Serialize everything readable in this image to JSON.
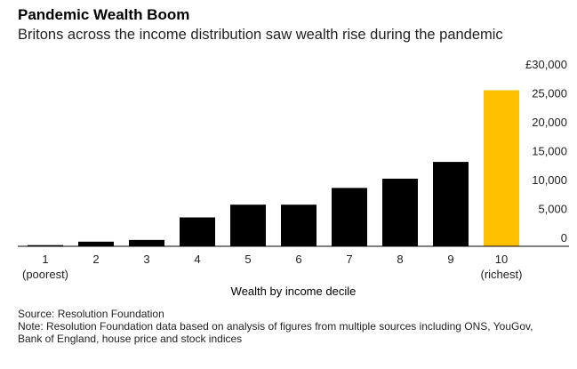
{
  "header": {
    "title": "Pandemic Wealth Boom",
    "subtitle": "Britons across the income distribution saw wealth rise during the pandemic"
  },
  "footer": {
    "source": "Source: Resolution Foundation",
    "note": "Note: Resolution Foundation data based on analysis of figures from multiple sources including ONS, YouGov, Bank of England, house price and stock indices"
  },
  "colors": {
    "default_bar": "#000000",
    "highlight_bar": "#ffc000",
    "axis": "#000000"
  },
  "chart_data": {
    "type": "bar",
    "title": "Pandemic Wealth Boom",
    "subtitle": "Britons across the income distribution saw wealth rise during the pandemic",
    "xlabel": "Wealth by income decile",
    "ylabel": "",
    "categories": [
      "1",
      "2",
      "3",
      "4",
      "5",
      "6",
      "7",
      "8",
      "9",
      "10"
    ],
    "category_sublabels": [
      "(poorest)",
      "",
      "",
      "",
      "",
      "",
      "",
      "",
      "",
      "(richest)"
    ],
    "values": [
      200,
      800,
      1100,
      5000,
      7200,
      7200,
      10100,
      11700,
      14600,
      27000
    ],
    "highlight_index": 9,
    "yticks": [
      0,
      5000,
      10000,
      15000,
      20000,
      25000,
      30000
    ],
    "ytick_labels": [
      "0",
      "5,000",
      "10,000",
      "15,000",
      "20,000",
      "25,000",
      "£30,000"
    ],
    "ylim": [
      0,
      30000
    ],
    "yaxis_position": "right",
    "grid": false
  }
}
